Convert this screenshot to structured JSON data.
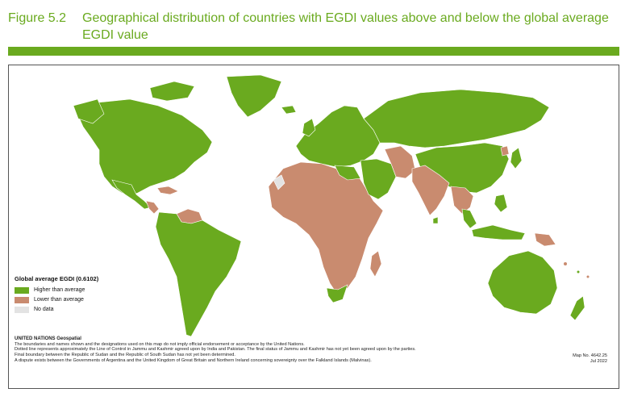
{
  "figure": {
    "number": "Figure 5.2",
    "title": "Geographical distribution of countries with EGDI values above and below the global average EGDI value"
  },
  "colors": {
    "accent": "#6aaa1f",
    "higher": "#6aaa1f",
    "lower": "#c98b6f",
    "nodata": "#e3e3e3"
  },
  "legend": {
    "title": "Global average EGDI (0.6102)",
    "items": [
      {
        "label": "Higher than average",
        "color": "#6aaa1f"
      },
      {
        "label": "Lower than average",
        "color": "#c98b6f"
      },
      {
        "label": "No data",
        "color": "#e3e3e3"
      }
    ]
  },
  "notes": {
    "org": "UNITED NATIONS Geospatial",
    "lines": [
      "The boundaries and names shown and the designations used on this map do not imply official endorsement or acceptance by the United Nations.",
      "Dotted line represents approximately the Line of Control in Jammu and Kashmir agreed upon by India and Pakistan. The final status of Jammu and Kashmir has not yet been agreed upon by the parties.",
      "Final boundary between the Republic of Sudan and the Republic of South Sudan has not yet been determined.",
      "A dispute exists between the Governments of Argentina and the United Kingdom of Great Britain and Northern Ireland concerning sovereignty over the Falkland Islands (Malvinas)."
    ]
  },
  "map_id": {
    "number": "Map No. 4642.25",
    "date": "Jul 2022"
  }
}
